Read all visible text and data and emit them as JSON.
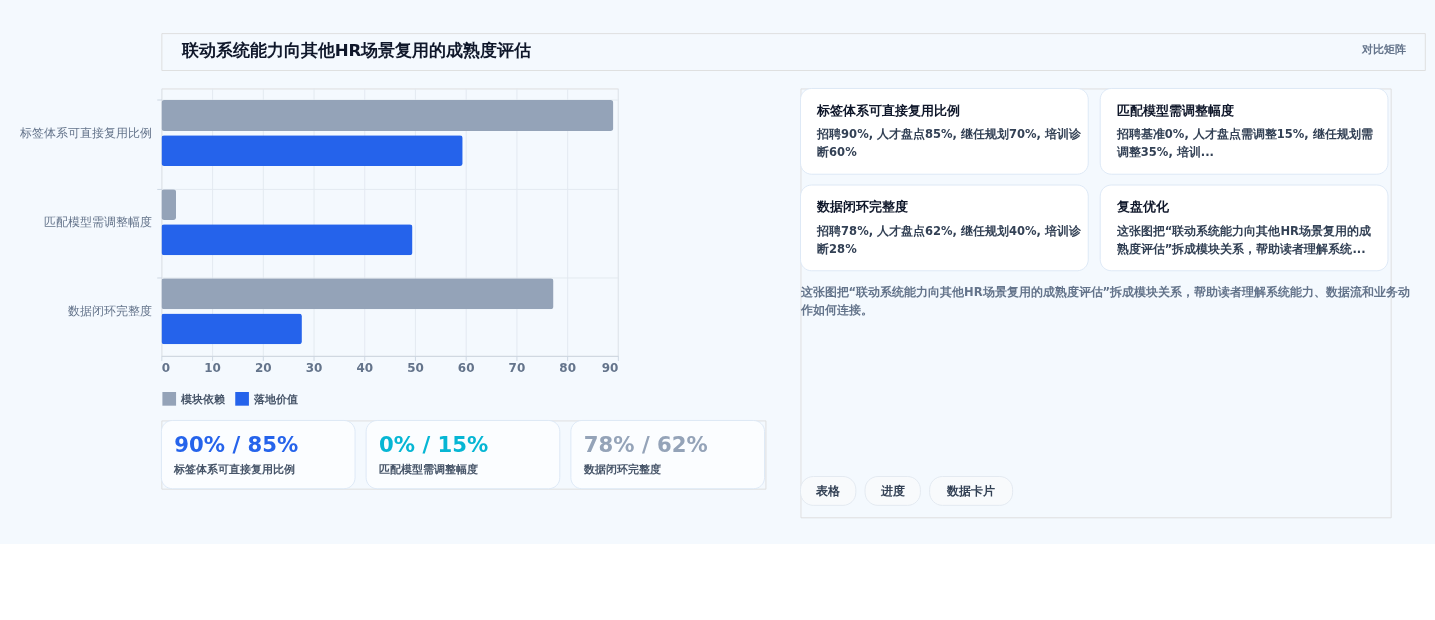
{
  "chart_data": [
    {
      "type": "bar",
      "orientation": "horizontal",
      "categories": [
        "标签体系可直接复用比例",
        "匹配模型需调整幅度",
        "数据闭环完整度"
      ],
      "series": [
        {
          "name": "模块依赖",
          "color": "#94a3b8",
          "values": [
            89.1,
            2.9,
            77.3
          ]
        },
        {
          "name": "落地价值",
          "color": "#2563eb",
          "values": [
            59.4,
            49.5,
            27.7
          ]
        }
      ],
      "xlim": [
        0,
        90
      ],
      "xticks": [
        0,
        10,
        20,
        30,
        40,
        50,
        60,
        70,
        80,
        90
      ],
      "grid": true,
      "legend": "bottom"
    },
    {
      "type": "other",
      "title": "联动系统能力向其他HR场景复用的成熟度评估",
      "annotations": [
        "对比矩阵",
        "标签体系可直接复用比例",
        "招聘90%, 人才盘点85%, 继任规划70%, 培训诊断60%",
        "匹配模型需调整幅度",
        "招聘基准0%, 人才盘点需调整15%, 继任规划需调整35%, 培训...",
        "数据闭环完整度",
        "招聘78%, 人才盘点62%, 继任规划40%, 培训诊断28%",
        "复盘优化",
        "这张图把“联动系统能力向其他HR场景复用的成熟度评估”拆成模块关系，帮助读者理解系统...",
        "这张图把“联动系统能力向其他HR场景复用的成熟度评估”拆成模块关系，帮助读者理解系统能力、数据流和业务动作如何连接。",
        "90% / 85%",
        "标签体系可直接复用比例",
        "0% / 15%",
        "匹配模型需调整幅度",
        "78% / 62%",
        "数据闭环完整度",
        "表格",
        "进度",
        "数据卡片"
      ]
    }
  ]
}
